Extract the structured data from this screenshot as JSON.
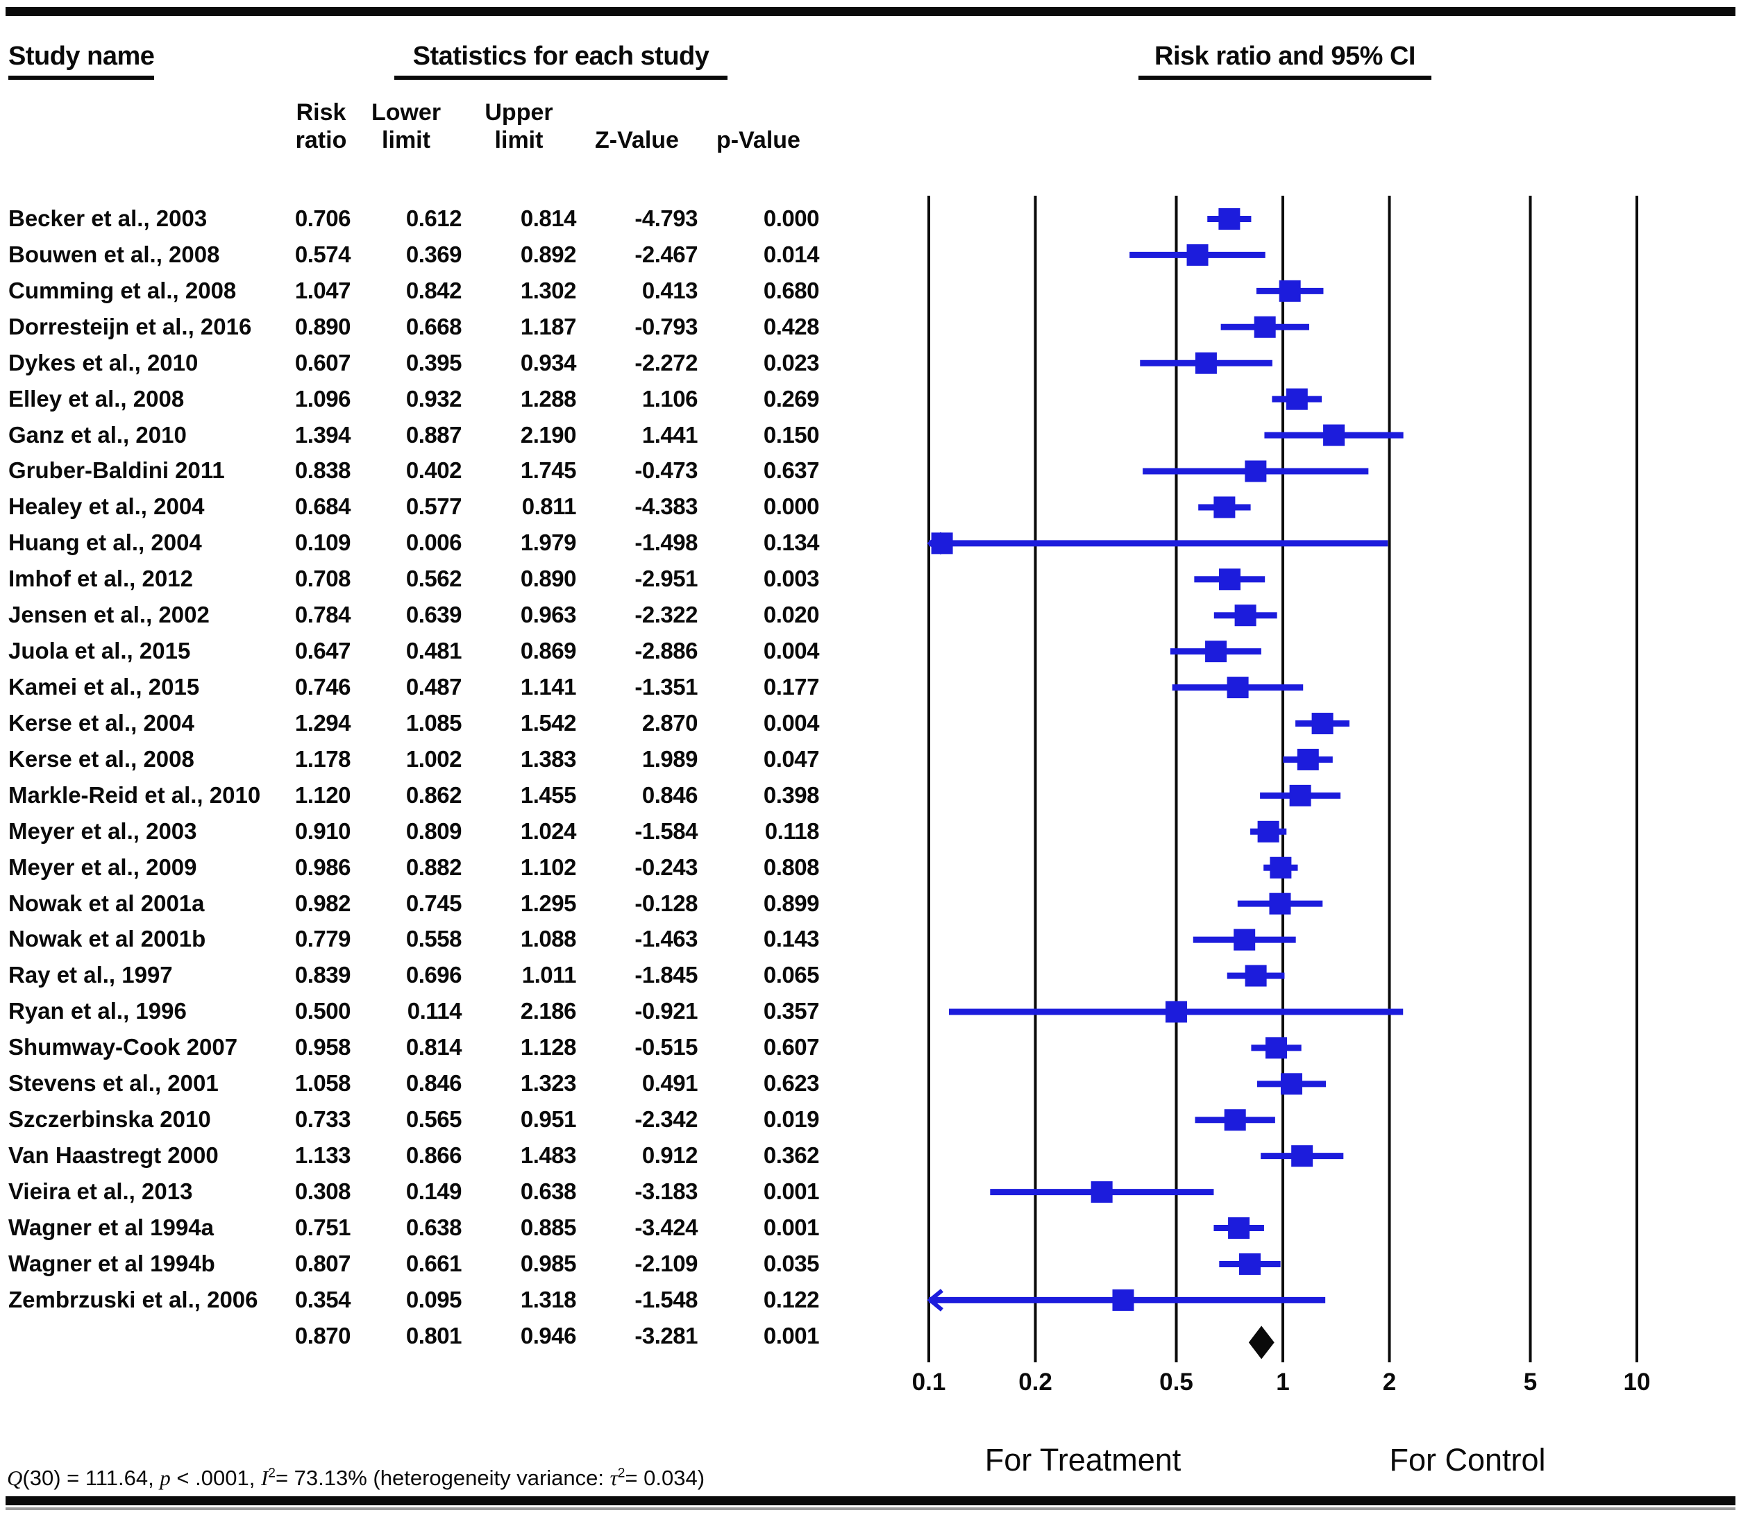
{
  "page": {
    "header": {
      "study_name": "Study name",
      "stats": "Statistics for each study",
      "plot": "Risk ratio and 95% CI"
    },
    "columns": {
      "risk": "Risk\nratio",
      "lower": "Lower\nlimit",
      "upper": "Upper\nlimit",
      "z": "Z-Value",
      "p": "p-Value"
    },
    "footer_segments": [
      {
        "text": "Q",
        "italic": true
      },
      {
        "text": "(30) = 111.64, "
      },
      {
        "text": "p",
        "italic": true
      },
      {
        "text": " < .0001, "
      },
      {
        "text": "I",
        "italic": true
      },
      {
        "text": "2",
        "sup": true
      },
      {
        "text": "= 73.13% (heterogeneity variance: "
      },
      {
        "text": "τ",
        "italic": true
      },
      {
        "text": "2",
        "sup": true
      },
      {
        "text": "= 0.034)"
      }
    ]
  },
  "chart_data": {
    "type": "scatter",
    "variant": "forest_plot",
    "title": "Risk ratio and 95% CI",
    "x_scale": "log10",
    "x_range": [
      0.1,
      10
    ],
    "x_ticks": [
      "0.1",
      "0.2",
      "0.5",
      "1",
      "2",
      "5",
      "10"
    ],
    "xlabel_left": "For Treatment",
    "xlabel_right": "For Control",
    "grid": "vertical-lines-at-ticks",
    "marker_color": "#1c1cdc",
    "summary_color": "#0a0a0a",
    "studies": [
      {
        "name": "Becker et al., 2003",
        "risk_ratio": "0.706",
        "lower": "0.612",
        "upper": "0.814",
        "z": "-4.793",
        "p": "0.000"
      },
      {
        "name": "Bouwen et al., 2008",
        "risk_ratio": "0.574",
        "lower": "0.369",
        "upper": "0.892",
        "z": "-2.467",
        "p": "0.014"
      },
      {
        "name": "Cumming et al., 2008",
        "risk_ratio": "1.047",
        "lower": "0.842",
        "upper": "1.302",
        "z": "0.413",
        "p": "0.680"
      },
      {
        "name": "Dorresteijn et al., 2016",
        "risk_ratio": "0.890",
        "lower": "0.668",
        "upper": "1.187",
        "z": "-0.793",
        "p": "0.428"
      },
      {
        "name": "Dykes et al., 2010",
        "risk_ratio": "0.607",
        "lower": "0.395",
        "upper": "0.934",
        "z": "-2.272",
        "p": "0.023"
      },
      {
        "name": "Elley et al., 2008",
        "risk_ratio": "1.096",
        "lower": "0.932",
        "upper": "1.288",
        "z": "1.106",
        "p": "0.269"
      },
      {
        "name": "Ganz et al., 2010",
        "risk_ratio": "1.394",
        "lower": "0.887",
        "upper": "2.190",
        "z": "1.441",
        "p": "0.150"
      },
      {
        "name": "Gruber-Baldini 2011",
        "risk_ratio": "0.838",
        "lower": "0.402",
        "upper": "1.745",
        "z": "-0.473",
        "p": "0.637"
      },
      {
        "name": "Healey et al., 2004",
        "risk_ratio": "0.684",
        "lower": "0.577",
        "upper": "0.811",
        "z": "-4.383",
        "p": "0.000"
      },
      {
        "name": "Huang et al., 2004",
        "risk_ratio": "0.109",
        "lower": "0.006",
        "upper": "1.979",
        "z": "-1.498",
        "p": "0.134"
      },
      {
        "name": "Imhof et al., 2012",
        "risk_ratio": "0.708",
        "lower": "0.562",
        "upper": "0.890",
        "z": "-2.951",
        "p": "0.003"
      },
      {
        "name": "Jensen et al., 2002",
        "risk_ratio": "0.784",
        "lower": "0.639",
        "upper": "0.963",
        "z": "-2.322",
        "p": "0.020"
      },
      {
        "name": "Juola et al., 2015",
        "risk_ratio": "0.647",
        "lower": "0.481",
        "upper": "0.869",
        "z": "-2.886",
        "p": "0.004"
      },
      {
        "name": "Kamei et al., 2015",
        "risk_ratio": "0.746",
        "lower": "0.487",
        "upper": "1.141",
        "z": "-1.351",
        "p": "0.177"
      },
      {
        "name": "Kerse et al., 2004",
        "risk_ratio": "1.294",
        "lower": "1.085",
        "upper": "1.542",
        "z": "2.870",
        "p": "0.004"
      },
      {
        "name": "Kerse et al., 2008",
        "risk_ratio": "1.178",
        "lower": "1.002",
        "upper": "1.383",
        "z": "1.989",
        "p": "0.047"
      },
      {
        "name": "Markle-Reid et al., 2010",
        "risk_ratio": "1.120",
        "lower": "0.862",
        "upper": "1.455",
        "z": "0.846",
        "p": "0.398"
      },
      {
        "name": "Meyer et al., 2003",
        "risk_ratio": "0.910",
        "lower": "0.809",
        "upper": "1.024",
        "z": "-1.584",
        "p": "0.118"
      },
      {
        "name": "Meyer et al., 2009",
        "risk_ratio": "0.986",
        "lower": "0.882",
        "upper": "1.102",
        "z": "-0.243",
        "p": "0.808"
      },
      {
        "name": "Nowak et al 2001a",
        "risk_ratio": "0.982",
        "lower": "0.745",
        "upper": "1.295",
        "z": "-0.128",
        "p": "0.899"
      },
      {
        "name": "Nowak et al 2001b",
        "risk_ratio": "0.779",
        "lower": "0.558",
        "upper": "1.088",
        "z": "-1.463",
        "p": "0.143"
      },
      {
        "name": "Ray et al., 1997",
        "risk_ratio": "0.839",
        "lower": "0.696",
        "upper": "1.011",
        "z": "-1.845",
        "p": "0.065"
      },
      {
        "name": "Ryan et al., 1996",
        "risk_ratio": "0.500",
        "lower": "0.114",
        "upper": "2.186",
        "z": "-0.921",
        "p": "0.357"
      },
      {
        "name": "Shumway-Cook 2007",
        "risk_ratio": "0.958",
        "lower": "0.814",
        "upper": "1.128",
        "z": "-0.515",
        "p": "0.607"
      },
      {
        "name": "Stevens et al., 2001",
        "risk_ratio": "1.058",
        "lower": "0.846",
        "upper": "1.323",
        "z": "0.491",
        "p": "0.623"
      },
      {
        "name": "Szczerbinska 2010",
        "risk_ratio": "0.733",
        "lower": "0.565",
        "upper": "0.951",
        "z": "-2.342",
        "p": "0.019"
      },
      {
        "name": "Van Haastregt 2000",
        "risk_ratio": "1.133",
        "lower": "0.866",
        "upper": "1.483",
        "z": "0.912",
        "p": "0.362"
      },
      {
        "name": "Vieira et al., 2013",
        "risk_ratio": "0.308",
        "lower": "0.149",
        "upper": "0.638",
        "z": "-3.183",
        "p": "0.001"
      },
      {
        "name": "Wagner et al 1994a",
        "risk_ratio": "0.751",
        "lower": "0.638",
        "upper": "0.885",
        "z": "-3.424",
        "p": "0.001"
      },
      {
        "name": "Wagner et al 1994b",
        "risk_ratio": "0.807",
        "lower": "0.661",
        "upper": "0.985",
        "z": "-2.109",
        "p": "0.035"
      },
      {
        "name": "Zembrzuski et al., 2006",
        "risk_ratio": "0.354",
        "lower": "0.095",
        "upper": "1.318",
        "z": "-1.548",
        "p": "0.122"
      }
    ],
    "summary": {
      "name": "",
      "risk_ratio": "0.870",
      "lower": "0.801",
      "upper": "0.946",
      "z": "-3.281",
      "p": "0.001"
    }
  }
}
